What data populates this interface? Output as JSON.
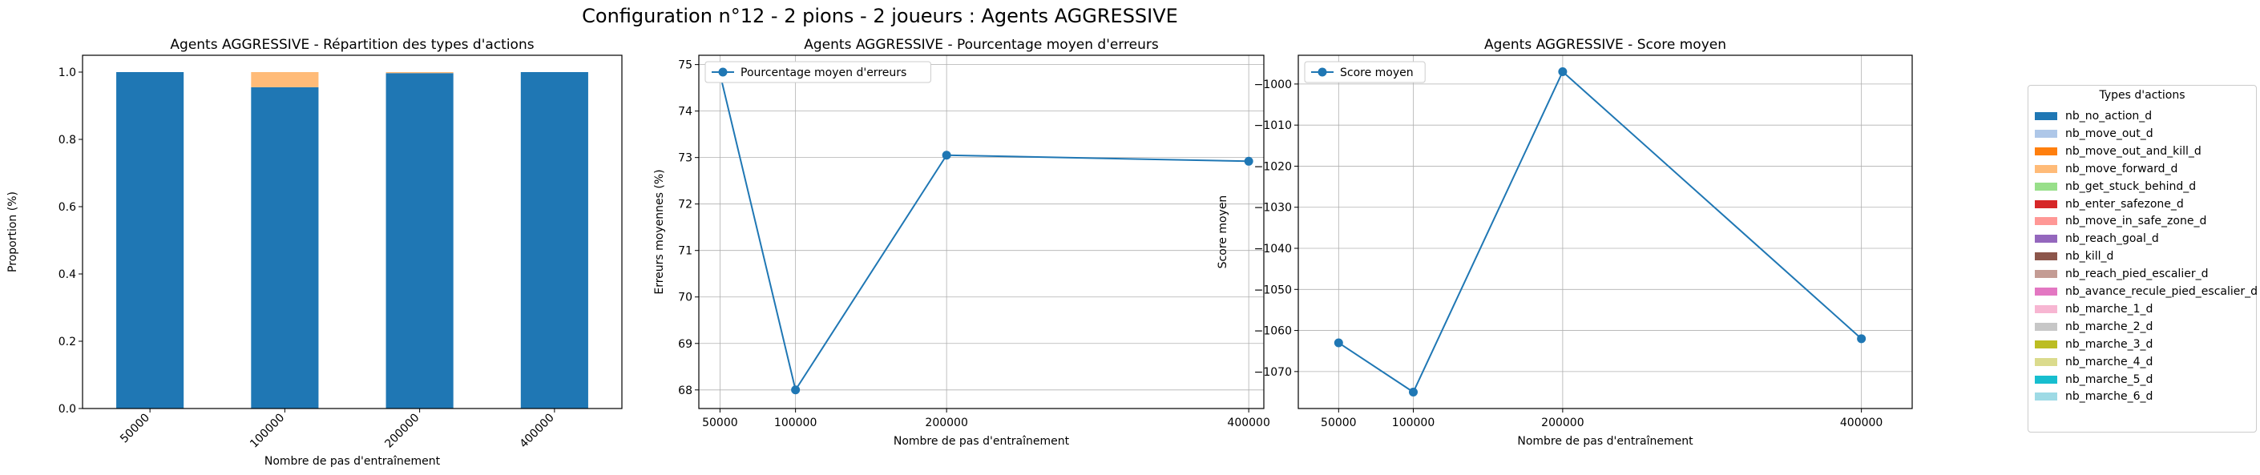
{
  "figure_title": "Configuration n°12 - 2 pions - 2 joueurs : Agents AGGRESSIVE",
  "chart_data": [
    {
      "type": "bar",
      "stacked": true,
      "title": "Agents AGGRESSIVE - Répartition des types d'actions",
      "xlabel": "Nombre de pas d'entraînement",
      "ylabel": "Proportion (%)",
      "categories": [
        "50000",
        "100000",
        "200000",
        "400000"
      ],
      "ylim": [
        0,
        1.05
      ],
      "yticks": [
        "0.0",
        "0.2",
        "0.4",
        "0.6",
        "0.8",
        "1.0"
      ],
      "grid": false,
      "series": [
        {
          "name": "nb_no_action_d",
          "color": "#1f77b4",
          "values": [
            1.0,
            0.955,
            0.997,
            1.0
          ]
        },
        {
          "name": "nb_move_forward_d",
          "color": "#ffbb78",
          "values": [
            0.0,
            0.045,
            0.003,
            0.0
          ]
        }
      ]
    },
    {
      "type": "line",
      "title": "Agents AGGRESSIVE - Pourcentage moyen d'erreurs",
      "xlabel": "Nombre de pas d'entraînement",
      "ylabel": "Erreurs moyennes (%)",
      "x": [
        50000,
        100000,
        200000,
        400000
      ],
      "xticks": [
        "50000",
        "100000",
        "200000",
        "400000"
      ],
      "ylim": [
        67.6,
        75.2
      ],
      "yticks": [
        "68",
        "69",
        "70",
        "71",
        "72",
        "73",
        "74",
        "75"
      ],
      "grid": true,
      "legend": "top-left",
      "series": [
        {
          "name": "Pourcentage moyen d'erreurs",
          "color": "#1f77b4",
          "values": [
            74.8,
            68.0,
            73.05,
            72.92
          ]
        }
      ]
    },
    {
      "type": "line",
      "title": "Agents AGGRESSIVE - Score moyen",
      "xlabel": "Nombre de pas d'entraînement",
      "ylabel": "Score moyen",
      "x": [
        50000,
        100000,
        200000,
        400000
      ],
      "xticks": [
        "50000",
        "100000",
        "200000",
        "400000"
      ],
      "ylim": [
        -1079,
        -993
      ],
      "yticks": [
        "−1000",
        "−1010",
        "−1020",
        "−1030",
        "−1040",
        "−1050",
        "−1060",
        "−1070"
      ],
      "grid": true,
      "legend": "top-left",
      "series": [
        {
          "name": "Score moyen",
          "color": "#1f77b4",
          "values": [
            -1063,
            -1075,
            -997,
            -1062
          ]
        }
      ]
    }
  ],
  "legend": {
    "title": "Types d'actions",
    "items": [
      {
        "label": "nb_no_action_d",
        "color": "#1f77b4"
      },
      {
        "label": "nb_move_out_d",
        "color": "#aec7e8"
      },
      {
        "label": "nb_move_out_and_kill_d",
        "color": "#ff7f0e"
      },
      {
        "label": "nb_move_forward_d",
        "color": "#ffbb78"
      },
      {
        "label": "nb_get_stuck_behind_d",
        "color": "#98df8a"
      },
      {
        "label": "nb_enter_safezone_d",
        "color": "#d62728"
      },
      {
        "label": "nb_move_in_safe_zone_d",
        "color": "#ff9896"
      },
      {
        "label": "nb_reach_goal_d",
        "color": "#9467bd"
      },
      {
        "label": "nb_kill_d",
        "color": "#8c564b"
      },
      {
        "label": "nb_reach_pied_escalier_d",
        "color": "#c49c94"
      },
      {
        "label": "nb_avance_recule_pied_escalier_d",
        "color": "#e377c2"
      },
      {
        "label": "nb_marche_1_d",
        "color": "#f7b6d2"
      },
      {
        "label": "nb_marche_2_d",
        "color": "#c7c7c7"
      },
      {
        "label": "nb_marche_3_d",
        "color": "#bcbd22"
      },
      {
        "label": "nb_marche_4_d",
        "color": "#dbdb8d"
      },
      {
        "label": "nb_marche_5_d",
        "color": "#17becf"
      },
      {
        "label": "nb_marche_6_d",
        "color": "#9edae5"
      }
    ]
  }
}
